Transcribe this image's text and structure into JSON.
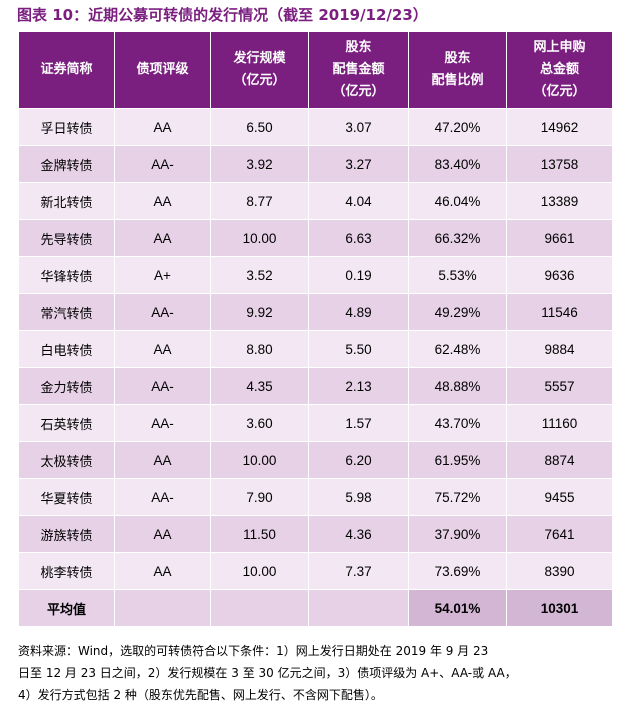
{
  "title": "图表 10：近期公募可转债的发行情况（截至 2019/12/23）",
  "columns": [
    [
      "证券简称"
    ],
    [
      "债项评级"
    ],
    [
      "发行规模",
      "（亿元）"
    ],
    [
      "股东",
      "配售金额",
      "（亿元）"
    ],
    [
      "股东",
      "配售比例"
    ],
    [
      "网上申购",
      "总金额",
      "（亿元）"
    ]
  ],
  "rows": [
    [
      "孚日转债",
      "AA",
      "6.50",
      "3.07",
      "47.20%",
      "14962"
    ],
    [
      "金牌转债",
      "AA-",
      "3.92",
      "3.27",
      "83.40%",
      "13758"
    ],
    [
      "新北转债",
      "AA",
      "8.77",
      "4.04",
      "46.04%",
      "13389"
    ],
    [
      "先导转债",
      "AA",
      "10.00",
      "6.63",
      "66.32%",
      "9661"
    ],
    [
      "华锋转债",
      "A+",
      "3.52",
      "0.19",
      "5.53%",
      "9636"
    ],
    [
      "常汽转债",
      "AA-",
      "9.92",
      "4.89",
      "49.29%",
      "11546"
    ],
    [
      "白电转债",
      "AA",
      "8.80",
      "5.50",
      "62.48%",
      "9884"
    ],
    [
      "金力转债",
      "AA-",
      "4.35",
      "2.13",
      "48.88%",
      "5557"
    ],
    [
      "石英转债",
      "AA-",
      "3.60",
      "1.57",
      "43.70%",
      "11160"
    ],
    [
      "太极转债",
      "AA",
      "10.00",
      "6.20",
      "61.95%",
      "8874"
    ],
    [
      "华夏转债",
      "AA-",
      "7.90",
      "5.98",
      "75.72%",
      "9455"
    ],
    [
      "游族转债",
      "AA",
      "11.50",
      "4.36",
      "37.90%",
      "7641"
    ],
    [
      "桃李转债",
      "AA",
      "10.00",
      "7.37",
      "73.69%",
      "8390"
    ]
  ],
  "average": [
    "平均值",
    "",
    "",
    "",
    "54.01%",
    "10301"
  ],
  "note_lines": [
    "资料来源：Wind，选取的可转债符合以下条件：1）网上发行日期处在 2019 年 9 月 23",
    "日至 12 月 23 日之间，2）发行规模在 3 至 30 亿元之间，3）债项评级为 A+、AA-或 AA，",
    "4）发行方式包括 2 种（股东优先配售、网上发行、不含网下配售）。"
  ],
  "colors": {
    "header": "#7a1f7f",
    "row_light": "#f2e7f2",
    "row_dark": "#e6d1e6",
    "avg_dark": "#d3b6d4"
  }
}
